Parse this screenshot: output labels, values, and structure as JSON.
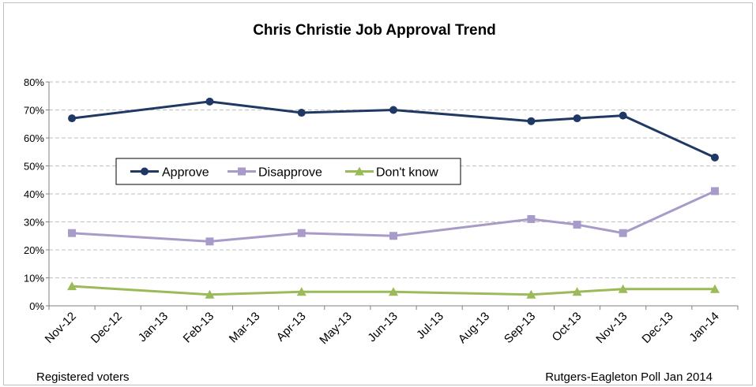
{
  "chart_data": {
    "type": "line",
    "title": "Chris Christie Job Approval Trend",
    "categories": [
      "Nov-12",
      "Dec-12",
      "Jan-13",
      "Feb-13",
      "Mar-13",
      "Apr-13",
      "May-13",
      "Jun-13",
      "Jul-13",
      "Aug-13",
      "Sep-13",
      "Oct-13",
      "Nov-13",
      "Dec-13",
      "Jan-14"
    ],
    "y_ticks": [
      "0%",
      "10%",
      "20%",
      "30%",
      "40%",
      "50%",
      "60%",
      "70%",
      "80%"
    ],
    "ylim": [
      0,
      80
    ],
    "y_unit": "%",
    "grid": true,
    "legend_position": "center-left inside plot",
    "series": [
      {
        "name": "Approve",
        "color": "#1f3864",
        "marker": "circle",
        "points": [
          {
            "x": "Nov-12",
            "y": 67
          },
          {
            "x": "Feb-13",
            "y": 73
          },
          {
            "x": "Apr-13",
            "y": 69
          },
          {
            "x": "Jun-13",
            "y": 70
          },
          {
            "x": "Sep-13",
            "y": 66
          },
          {
            "x": "Oct-13",
            "y": 67
          },
          {
            "x": "Nov-13",
            "y": 68
          },
          {
            "x": "Jan-14",
            "y": 53
          }
        ]
      },
      {
        "name": "Disapprove",
        "color": "#a99bc9",
        "marker": "square",
        "points": [
          {
            "x": "Nov-12",
            "y": 26
          },
          {
            "x": "Feb-13",
            "y": 23
          },
          {
            "x": "Apr-13",
            "y": 26
          },
          {
            "x": "Jun-13",
            "y": 25
          },
          {
            "x": "Sep-13",
            "y": 31
          },
          {
            "x": "Oct-13",
            "y": 29
          },
          {
            "x": "Nov-13",
            "y": 26
          },
          {
            "x": "Jan-14",
            "y": 41
          }
        ]
      },
      {
        "name": "Don't know",
        "color": "#9bbb59",
        "marker": "triangle",
        "points": [
          {
            "x": "Nov-12",
            "y": 7
          },
          {
            "x": "Feb-13",
            "y": 4
          },
          {
            "x": "Apr-13",
            "y": 5
          },
          {
            "x": "Jun-13",
            "y": 5
          },
          {
            "x": "Sep-13",
            "y": 4
          },
          {
            "x": "Oct-13",
            "y": 5
          },
          {
            "x": "Nov-13",
            "y": 6
          },
          {
            "x": "Jan-14",
            "y": 6
          }
        ]
      }
    ],
    "notes": {
      "left": "Registered voters",
      "right": "Rutgers-Eagleton Poll Jan 2014"
    }
  }
}
